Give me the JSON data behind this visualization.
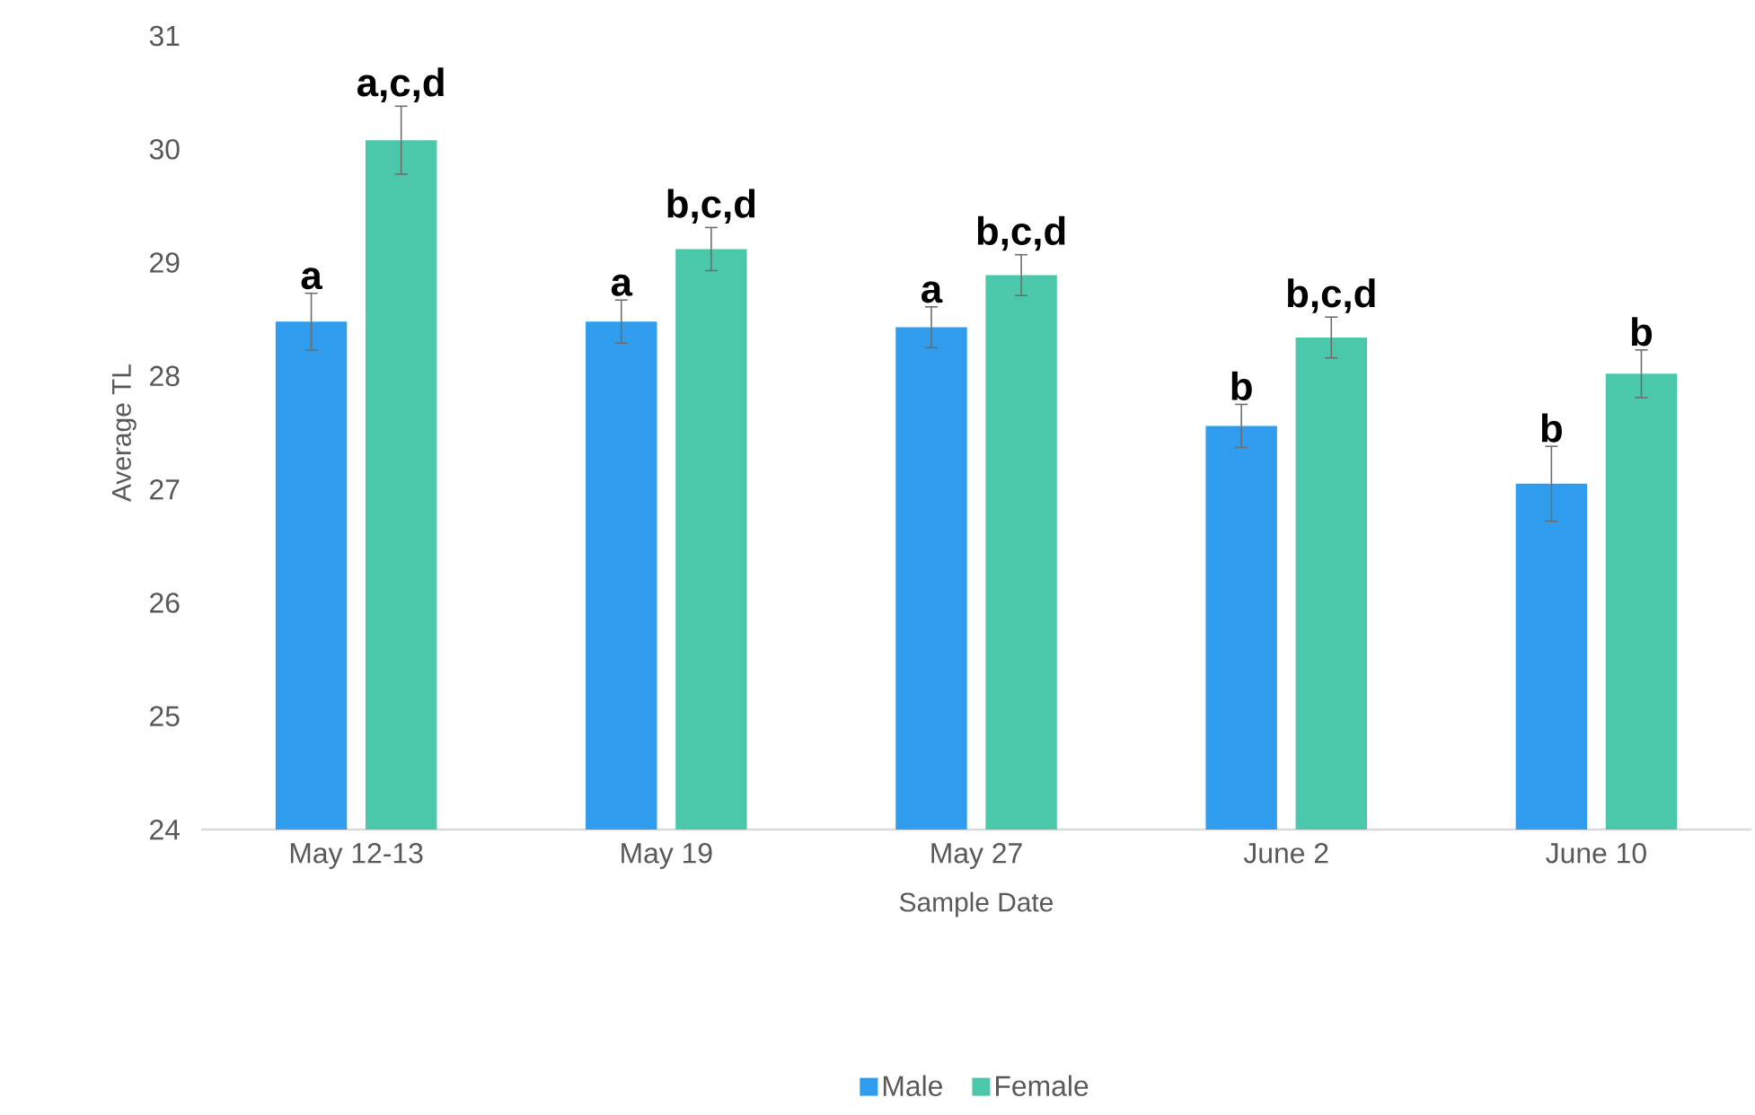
{
  "chart_data": {
    "type": "bar",
    "xlabel": "Sample Date",
    "ylabel": "Average TL",
    "categories": [
      "May 12-13",
      "May 19",
      "May 27",
      "June 2",
      "June 10"
    ],
    "series": [
      {
        "name": "Male",
        "color": "#2f9ced",
        "values": [
          28.48,
          28.48,
          28.43,
          27.56,
          27.05
        ],
        "errors": [
          0.25,
          0.19,
          0.18,
          0.19,
          0.33
        ],
        "value_labels": [
          "a",
          "a",
          "a",
          "b",
          "b"
        ]
      },
      {
        "name": "Female",
        "color": "#4bc8a9",
        "values": [
          30.08,
          29.12,
          28.89,
          28.34,
          28.02
        ],
        "errors": [
          0.3,
          0.19,
          0.18,
          0.18,
          0.21
        ],
        "value_labels": [
          "a,c,d",
          "b,c,d",
          "b,c,d",
          "b,c,d",
          "b"
        ]
      }
    ],
    "ylim": [
      24,
      31
    ],
    "yticks": [
      24,
      25,
      26,
      27,
      28,
      29,
      30,
      31
    ],
    "legend": "bottom"
  }
}
